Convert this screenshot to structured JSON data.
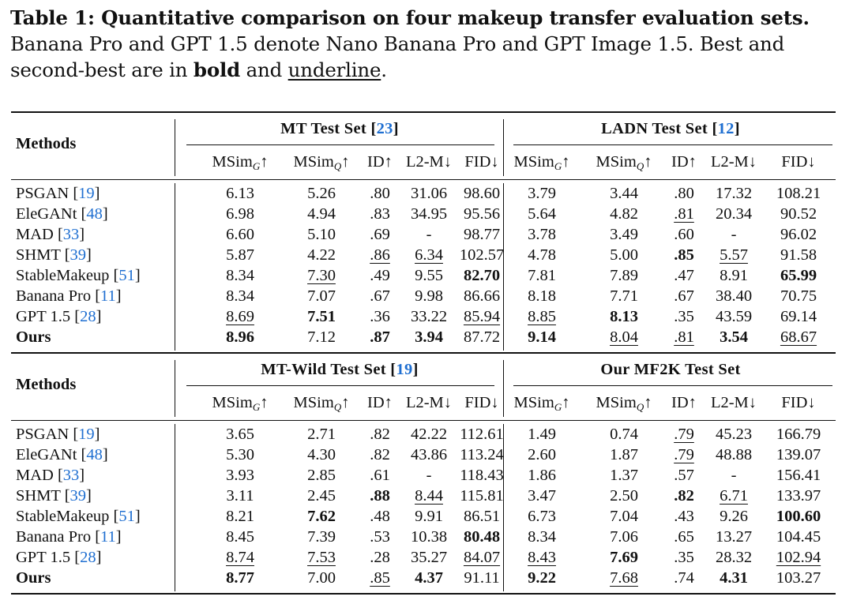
{
  "caption": {
    "label": "Table 1: Quantitative comparison on four makeup transfer evaluation sets.",
    "text_before_bold": " Banana Pro and GPT 1.5 denote Nano Banana Pro and GPT Image 1.5. Best and second-best are in ",
    "bold_word": "bold",
    "middle": " and ",
    "underline_word": "underline",
    "end": "."
  },
  "header": {
    "methods_label": "Methods",
    "metrics": [
      "MSim",
      "MSim",
      "ID↑",
      "L2-M↓",
      "FID↓"
    ],
    "metric_subs": [
      "G",
      "Q"
    ],
    "arrow_up": "↑"
  },
  "blocks": [
    {
      "left_set": {
        "name": "MT Test Set [",
        "ref": "23",
        "close": "]"
      },
      "right_set": {
        "name": "LADN Test Set [",
        "ref": "12",
        "close": "]"
      },
      "rows": [
        {
          "method": "PSGAN [",
          "ref": "19",
          "cells": [
            [
              "6.13",
              ""
            ],
            [
              "5.26",
              ""
            ],
            [
              ".80",
              ""
            ],
            [
              "31.06",
              ""
            ],
            [
              "98.60",
              ""
            ],
            [
              "3.79",
              ""
            ],
            [
              "3.44",
              ""
            ],
            [
              ".80",
              ""
            ],
            [
              "17.32",
              ""
            ],
            [
              "108.21",
              ""
            ]
          ]
        },
        {
          "method": "EleGANt [",
          "ref": "48",
          "cells": [
            [
              "6.98",
              ""
            ],
            [
              "4.94",
              ""
            ],
            [
              ".83",
              ""
            ],
            [
              "34.95",
              ""
            ],
            [
              "95.56",
              ""
            ],
            [
              "5.64",
              ""
            ],
            [
              "4.82",
              ""
            ],
            [
              ".81",
              "u"
            ],
            [
              "20.34",
              ""
            ],
            [
              "90.52",
              ""
            ]
          ]
        },
        {
          "method": "MAD [",
          "ref": "33",
          "cells": [
            [
              "6.60",
              ""
            ],
            [
              "5.10",
              ""
            ],
            [
              ".69",
              ""
            ],
            [
              "-",
              ""
            ],
            [
              "98.77",
              ""
            ],
            [
              "3.78",
              ""
            ],
            [
              "3.49",
              ""
            ],
            [
              ".60",
              ""
            ],
            [
              "-",
              ""
            ],
            [
              "96.02",
              ""
            ]
          ]
        },
        {
          "method": "SHMT [",
          "ref": "39",
          "cells": [
            [
              "5.87",
              ""
            ],
            [
              "4.22",
              ""
            ],
            [
              ".86",
              "u"
            ],
            [
              "6.34",
              "u"
            ],
            [
              "102.57",
              ""
            ],
            [
              "4.78",
              ""
            ],
            [
              "5.00",
              ""
            ],
            [
              ".85",
              "b"
            ],
            [
              "5.57",
              "u"
            ],
            [
              "91.58",
              ""
            ]
          ]
        },
        {
          "method": "StableMakeup [",
          "ref": "51",
          "cells": [
            [
              "8.34",
              ""
            ],
            [
              "7.30",
              "u"
            ],
            [
              ".49",
              ""
            ],
            [
              "9.55",
              ""
            ],
            [
              "82.70",
              "b"
            ],
            [
              "7.81",
              ""
            ],
            [
              "7.89",
              ""
            ],
            [
              ".47",
              ""
            ],
            [
              "8.91",
              ""
            ],
            [
              "65.99",
              "b"
            ]
          ]
        },
        {
          "method": "Banana Pro [",
          "ref": "11",
          "cells": [
            [
              "8.34",
              ""
            ],
            [
              "7.07",
              ""
            ],
            [
              ".67",
              ""
            ],
            [
              "9.98",
              ""
            ],
            [
              "86.66",
              ""
            ],
            [
              "8.18",
              ""
            ],
            [
              "7.71",
              ""
            ],
            [
              ".67",
              ""
            ],
            [
              "38.40",
              ""
            ],
            [
              "70.75",
              ""
            ]
          ]
        },
        {
          "method": "GPT 1.5 [",
          "ref": "28",
          "cells": [
            [
              "8.69",
              "u"
            ],
            [
              "7.51",
              "b"
            ],
            [
              ".36",
              ""
            ],
            [
              "33.22",
              ""
            ],
            [
              "85.94",
              "u"
            ],
            [
              "8.85",
              "u"
            ],
            [
              "8.13",
              "b"
            ],
            [
              ".35",
              ""
            ],
            [
              "43.59",
              ""
            ],
            [
              "69.14",
              ""
            ]
          ]
        },
        {
          "method": "Ours",
          "ref": "",
          "bold": true,
          "cells": [
            [
              "8.96",
              "b"
            ],
            [
              "7.12",
              ""
            ],
            [
              ".87",
              "b"
            ],
            [
              "3.94",
              "b"
            ],
            [
              "87.72",
              ""
            ],
            [
              "9.14",
              "b"
            ],
            [
              "8.04",
              "u"
            ],
            [
              ".81",
              "u"
            ],
            [
              "3.54",
              "b"
            ],
            [
              "68.67",
              "u"
            ]
          ]
        }
      ]
    },
    {
      "left_set": {
        "name": "MT-Wild Test Set [",
        "ref": "19",
        "close": "]"
      },
      "right_set": {
        "name": "Our MF2K Test Set",
        "ref": "",
        "close": ""
      },
      "rows": [
        {
          "method": "PSGAN [",
          "ref": "19",
          "cells": [
            [
              "3.65",
              ""
            ],
            [
              "2.71",
              ""
            ],
            [
              ".82",
              ""
            ],
            [
              "42.22",
              ""
            ],
            [
              "112.61",
              ""
            ],
            [
              "1.49",
              ""
            ],
            [
              "0.74",
              ""
            ],
            [
              ".79",
              "u"
            ],
            [
              "45.23",
              ""
            ],
            [
              "166.79",
              ""
            ]
          ]
        },
        {
          "method": "EleGANt [",
          "ref": "48",
          "cells": [
            [
              "5.30",
              ""
            ],
            [
              "4.30",
              ""
            ],
            [
              ".82",
              ""
            ],
            [
              "43.86",
              ""
            ],
            [
              "113.24",
              ""
            ],
            [
              "2.60",
              ""
            ],
            [
              "1.87",
              ""
            ],
            [
              ".79",
              "u"
            ],
            [
              "48.88",
              ""
            ],
            [
              "139.07",
              ""
            ]
          ]
        },
        {
          "method": "MAD [",
          "ref": "33",
          "cells": [
            [
              "3.93",
              ""
            ],
            [
              "2.85",
              ""
            ],
            [
              ".61",
              ""
            ],
            [
              "-",
              ""
            ],
            [
              "118.43",
              ""
            ],
            [
              "1.86",
              ""
            ],
            [
              "1.37",
              ""
            ],
            [
              ".57",
              ""
            ],
            [
              "-",
              ""
            ],
            [
              "156.41",
              ""
            ]
          ]
        },
        {
          "method": "SHMT [",
          "ref": "39",
          "cells": [
            [
              "3.11",
              ""
            ],
            [
              "2.45",
              ""
            ],
            [
              ".88",
              "b"
            ],
            [
              "8.44",
              "u"
            ],
            [
              "115.81",
              ""
            ],
            [
              "3.47",
              ""
            ],
            [
              "2.50",
              ""
            ],
            [
              ".82",
              "b"
            ],
            [
              "6.71",
              "u"
            ],
            [
              "133.97",
              ""
            ]
          ]
        },
        {
          "method": "StableMakeup [",
          "ref": "51",
          "cells": [
            [
              "8.21",
              ""
            ],
            [
              "7.62",
              "b"
            ],
            [
              ".48",
              ""
            ],
            [
              "9.91",
              ""
            ],
            [
              "86.51",
              ""
            ],
            [
              "6.73",
              ""
            ],
            [
              "7.04",
              ""
            ],
            [
              ".43",
              ""
            ],
            [
              "9.26",
              ""
            ],
            [
              "100.60",
              "b"
            ]
          ]
        },
        {
          "method": "Banana Pro [",
          "ref": "11",
          "cells": [
            [
              "8.45",
              ""
            ],
            [
              "7.39",
              ""
            ],
            [
              ".53",
              ""
            ],
            [
              "10.38",
              ""
            ],
            [
              "80.48",
              "b"
            ],
            [
              "8.34",
              ""
            ],
            [
              "7.06",
              ""
            ],
            [
              ".65",
              ""
            ],
            [
              "13.27",
              ""
            ],
            [
              "104.45",
              ""
            ]
          ]
        },
        {
          "method": "GPT 1.5 [",
          "ref": "28",
          "cells": [
            [
              "8.74",
              "u"
            ],
            [
              "7.53",
              "u"
            ],
            [
              ".28",
              ""
            ],
            [
              "35.27",
              ""
            ],
            [
              "84.07",
              "u"
            ],
            [
              "8.43",
              "u"
            ],
            [
              "7.69",
              "b"
            ],
            [
              ".35",
              ""
            ],
            [
              "28.32",
              ""
            ],
            [
              "102.94",
              "u"
            ]
          ]
        },
        {
          "method": "Ours",
          "ref": "",
          "bold": true,
          "cells": [
            [
              "8.77",
              "b"
            ],
            [
              "7.00",
              ""
            ],
            [
              ".85",
              "u"
            ],
            [
              "4.37",
              "b"
            ],
            [
              "91.11",
              ""
            ],
            [
              "9.22",
              "b"
            ],
            [
              "7.68",
              "u"
            ],
            [
              ".74",
              ""
            ],
            [
              "4.31",
              "b"
            ],
            [
              "103.27",
              ""
            ]
          ]
        }
      ]
    }
  ],
  "colors": {
    "text": "#111111",
    "reference_link": "#1f6fd1"
  }
}
